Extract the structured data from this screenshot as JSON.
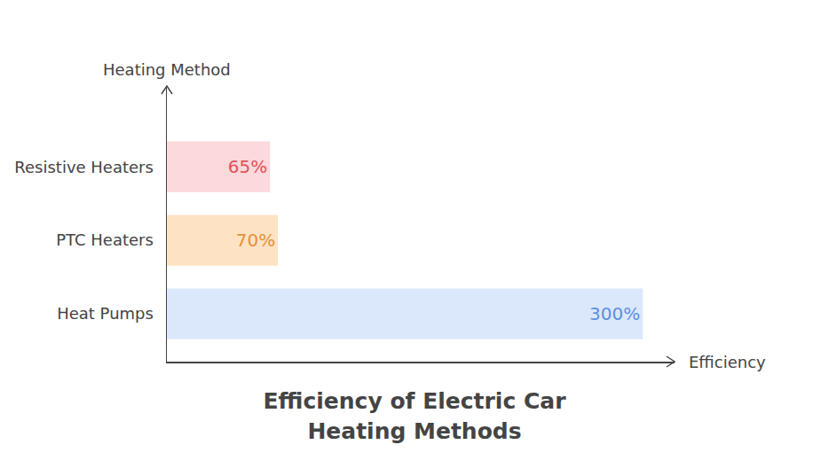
{
  "chart_data": {
    "type": "bar",
    "orientation": "horizontal",
    "title": "Efficiency of Electric Car Heating Methods",
    "x_label": "Efficiency",
    "y_label": "Heating Method",
    "categories": [
      "Resistive Heaters",
      "PTC Heaters",
      "Heat Pumps"
    ],
    "values": [
      65,
      70,
      300
    ],
    "value_labels": [
      "65%",
      "70%",
      "300%"
    ],
    "colors": [
      "#fcd9dc",
      "#fde3c4",
      "#dbe7fb"
    ],
    "xlim": [
      0,
      320
    ],
    "xticks": [],
    "data_labels": true,
    "tick_labels": "y",
    "grid": false
  }
}
